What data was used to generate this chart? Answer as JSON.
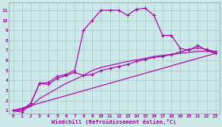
{
  "background_color": "#cce8e8",
  "grid_color": "#aacccc",
  "line_color": "#aa00aa",
  "xlim": [
    -0.5,
    23.5
  ],
  "ylim": [
    0.7,
    11.8
  ],
  "xticks": [
    0,
    1,
    2,
    3,
    4,
    5,
    6,
    7,
    8,
    9,
    10,
    11,
    12,
    13,
    14,
    15,
    16,
    17,
    18,
    19,
    20,
    21,
    22,
    23
  ],
  "yticks": [
    1,
    2,
    3,
    4,
    5,
    6,
    7,
    8,
    9,
    10,
    11
  ],
  "xlabel": "Windchill (Refroidissement éolien,°C)",
  "line1_x": [
    0,
    1,
    2,
    3,
    4,
    5,
    6,
    7,
    8,
    9,
    10,
    11,
    12,
    13,
    14,
    15,
    16,
    17,
    18,
    19,
    20,
    21,
    22,
    23
  ],
  "line1_y": [
    1.0,
    0.85,
    1.7,
    3.7,
    3.8,
    4.4,
    4.6,
    5.0,
    9.0,
    10.0,
    11.0,
    11.0,
    11.0,
    10.5,
    11.1,
    11.2,
    10.5,
    8.5,
    8.5,
    7.2,
    7.0,
    7.5,
    7.0,
    6.7
  ],
  "line2_x": [
    0,
    1,
    2,
    3,
    4,
    5,
    6,
    7,
    8,
    9,
    10,
    11,
    12,
    13,
    14,
    15,
    16,
    17,
    18,
    19,
    20,
    21,
    22,
    23
  ],
  "line2_y": [
    1.0,
    1.1,
    1.7,
    3.7,
    3.6,
    4.2,
    4.5,
    4.8,
    4.5,
    4.6,
    5.0,
    5.2,
    5.4,
    5.6,
    5.9,
    6.1,
    6.3,
    6.4,
    6.6,
    6.85,
    7.1,
    7.25,
    7.1,
    6.85
  ],
  "line3_x": [
    0,
    1,
    2,
    3,
    4,
    5,
    6,
    7,
    8,
    9,
    10,
    11,
    12,
    13,
    14,
    15,
    16,
    17,
    18,
    19,
    20,
    21,
    22,
    23
  ],
  "line3_y": [
    1.0,
    1.05,
    1.4,
    2.2,
    2.7,
    3.2,
    3.7,
    4.1,
    4.5,
    5.0,
    5.3,
    5.5,
    5.7,
    5.9,
    6.05,
    6.2,
    6.4,
    6.5,
    6.6,
    6.7,
    6.8,
    6.9,
    6.9,
    6.85
  ],
  "line4_x": [
    0,
    23
  ],
  "line4_y": [
    1.0,
    6.7
  ]
}
